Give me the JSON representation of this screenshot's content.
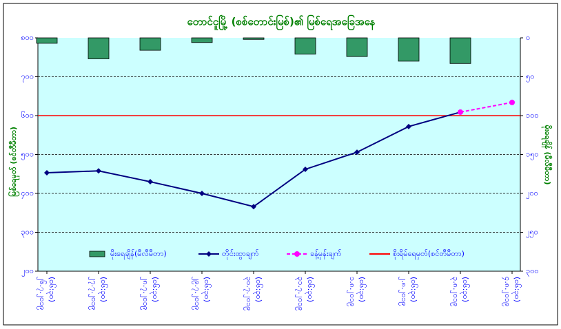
{
  "chart_data": {
    "type": "combo",
    "title": "တောင်ငူမြို့ (စစ်တောင်းမြစ်)၏ မြစ်ရေအခြေအနေ",
    "y_label": "မြစ်ရေမှတ် (စင်တီမီတာ)",
    "y2_label": "မိုးရေချိန် (မီလီမီတာ)",
    "categories": [
      "၂၆.၇.၂၀၁၉",
      "၂၇.၇.၂၀၁၉",
      "၂၈.၇.၂၀၁၉",
      "၂၉.၇.၂၀၁၉",
      "၃၀.၇.၂၀၁၉",
      "၃၁.၇.၂၀၁၉",
      "၁.၈.၂၀၁၉",
      "၂.၈.၂၀၁၉",
      "၃.၈.၂၀၁၉",
      "၄.၈.၂၀၁၉"
    ],
    "x_sublabels": [
      "(၀၆:၃၀)",
      "(၀၆:၃၀)",
      "(၀၆:၃၀)",
      "(၀၆:၃၀)",
      "(၀၆:၃၀)",
      "(၀၆:၃၀)",
      "(၀၆:၃၀)",
      "(၀၆:၃၀)",
      "(၀၆:၃၀)",
      "(၀၆:၃၀)"
    ],
    "ylim": [
      200,
      800
    ],
    "yticks": [
      {
        "value": 800,
        "label": "၈၀၀"
      },
      {
        "value": 700,
        "label": "၇၀၀"
      },
      {
        "value": 600,
        "label": "၆၀၀"
      },
      {
        "value": 500,
        "label": "၅၀၀"
      },
      {
        "value": 400,
        "label": "၄၀၀"
      },
      {
        "value": 300,
        "label": "၃၀၀"
      },
      {
        "value": 200,
        "label": "၂၀၀"
      }
    ],
    "y2lim": [
      0,
      300
    ],
    "y2_reversed": true,
    "y2ticks": [
      {
        "value": 0,
        "label": "၀"
      },
      {
        "value": 50,
        "label": "၅၀"
      },
      {
        "value": 100,
        "label": "၁၀၀"
      },
      {
        "value": 150,
        "label": "၁၅၀"
      },
      {
        "value": 200,
        "label": "၂၀၀"
      },
      {
        "value": 250,
        "label": "၂၅၀"
      },
      {
        "value": 300,
        "label": "၃၀၀"
      }
    ],
    "grid": true,
    "series": [
      {
        "name": "မိုးရေချိန်(မီလီမီတာ)",
        "kind": "bar",
        "axis": "y2",
        "color": "#339966",
        "values": [
          7,
          27,
          16,
          6,
          2,
          21,
          24,
          30,
          33,
          null
        ]
      },
      {
        "name": "တိုင်းထွာချက်",
        "kind": "line",
        "color": "#000080",
        "marker": "diamond",
        "values": [
          453,
          458,
          430,
          400,
          366,
          462,
          506,
          572,
          609,
          null
        ]
      },
      {
        "name": "ခန့်မှန်းချက်",
        "kind": "line",
        "color": "#ff00ff",
        "marker": "circle",
        "dashed": true,
        "values": [
          null,
          null,
          null,
          null,
          null,
          null,
          null,
          null,
          609,
          634
        ]
      }
    ],
    "reference_lines": [
      {
        "name": "စိုးရိမ်ရေမှတ်(စင်တီမီတာ)",
        "value": 600,
        "color": "#ff0000"
      }
    ]
  }
}
